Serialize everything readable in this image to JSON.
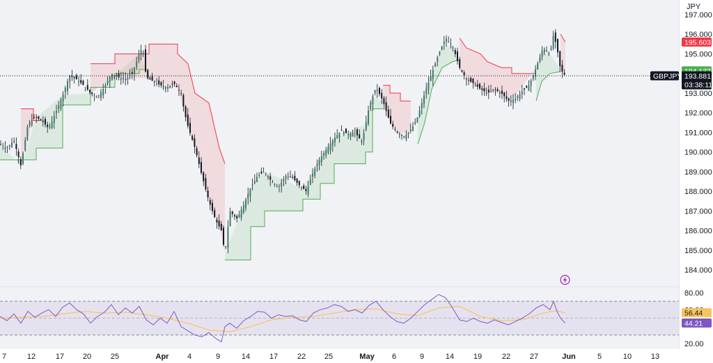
{
  "chart_data": {
    "type": "candlestick",
    "symbol": "GBPJPY",
    "currency_label": "JPY",
    "last_price": "193.881",
    "countdown": "03:38:11",
    "stop_upper": "195.603",
    "stop_lower": "194.137",
    "y_ticks": [
      "184.000",
      "185.000",
      "186.000",
      "187.000",
      "188.000",
      "189.000",
      "190.000",
      "191.000",
      "192.000",
      "193.000",
      "194.000",
      "195.000",
      "196.000",
      "197.000"
    ],
    "ylim": [
      183.6,
      197.3
    ],
    "x_ticks": [
      {
        "label": "7",
        "bold": false
      },
      {
        "label": "12",
        "bold": false
      },
      {
        "label": "17",
        "bold": false
      },
      {
        "label": "20",
        "bold": false
      },
      {
        "label": "25",
        "bold": false
      },
      {
        "label": "Apr",
        "bold": true
      },
      {
        "label": "4",
        "bold": false
      },
      {
        "label": "9",
        "bold": false
      },
      {
        "label": "14",
        "bold": false
      },
      {
        "label": "17",
        "bold": false
      },
      {
        "label": "22",
        "bold": false
      },
      {
        "label": "25",
        "bold": false
      },
      {
        "label": "May",
        "bold": true
      },
      {
        "label": "6",
        "bold": false
      },
      {
        "label": "9",
        "bold": false
      },
      {
        "label": "14",
        "bold": false
      },
      {
        "label": "19",
        "bold": false
      },
      {
        "label": "22",
        "bold": false
      },
      {
        "label": "27",
        "bold": false
      },
      {
        "label": "Jun",
        "bold": true
      },
      {
        "label": "5",
        "bold": false
      },
      {
        "label": "10",
        "bold": false
      },
      {
        "label": "13",
        "bold": false
      }
    ],
    "price_path": [
      [
        0,
        190.4
      ],
      [
        10,
        190.2
      ],
      [
        20,
        190.6
      ],
      [
        30,
        189.3
      ],
      [
        40,
        191.4
      ],
      [
        50,
        191.8
      ],
      [
        60,
        191.6
      ],
      [
        70,
        191.2
      ],
      [
        80,
        192.0
      ],
      [
        90,
        192.9
      ],
      [
        100,
        193.9
      ],
      [
        110,
        193.7
      ],
      [
        120,
        193.4
      ],
      [
        130,
        193.0
      ],
      [
        140,
        192.8
      ],
      [
        150,
        193.3
      ],
      [
        160,
        194.0
      ],
      [
        170,
        193.8
      ],
      [
        180,
        193.7
      ],
      [
        190,
        194.0
      ],
      [
        200,
        195.0
      ],
      [
        205,
        195.3
      ],
      [
        210,
        193.8
      ],
      [
        220,
        193.6
      ],
      [
        230,
        193.4
      ],
      [
        240,
        193.3
      ],
      [
        250,
        193.5
      ],
      [
        260,
        193.0
      ],
      [
        265,
        192.0
      ],
      [
        270,
        191.3
      ],
      [
        280,
        190.2
      ],
      [
        290,
        188.8
      ],
      [
        300,
        187.5
      ],
      [
        310,
        186.5
      ],
      [
        318,
        186.0
      ],
      [
        323,
        184.8
      ],
      [
        330,
        187.0
      ],
      [
        340,
        186.6
      ],
      [
        350,
        187.3
      ],
      [
        360,
        188.2
      ],
      [
        370,
        188.8
      ],
      [
        380,
        189.0
      ],
      [
        390,
        188.5
      ],
      [
        400,
        188.2
      ],
      [
        410,
        188.8
      ],
      [
        420,
        188.7
      ],
      [
        430,
        188.3
      ],
      [
        440,
        188.0
      ],
      [
        450,
        189.0
      ],
      [
        460,
        189.7
      ],
      [
        470,
        190.2
      ],
      [
        480,
        190.7
      ],
      [
        490,
        191.1
      ],
      [
        500,
        190.9
      ],
      [
        510,
        191.0
      ],
      [
        520,
        190.5
      ],
      [
        530,
        192.3
      ],
      [
        540,
        193.3
      ],
      [
        550,
        192.6
      ],
      [
        560,
        191.5
      ],
      [
        570,
        191.0
      ],
      [
        580,
        190.8
      ],
      [
        590,
        191.1
      ],
      [
        600,
        191.8
      ],
      [
        610,
        193.0
      ],
      [
        620,
        194.0
      ],
      [
        630,
        195.0
      ],
      [
        640,
        195.8
      ],
      [
        650,
        195.4
      ],
      [
        660,
        194.3
      ],
      [
        670,
        193.7
      ],
      [
        680,
        193.5
      ],
      [
        690,
        193.2
      ],
      [
        700,
        193.0
      ],
      [
        710,
        193.2
      ],
      [
        720,
        193.0
      ],
      [
        730,
        192.6
      ],
      [
        740,
        192.7
      ],
      [
        750,
        193.1
      ],
      [
        760,
        193.4
      ],
      [
        770,
        194.3
      ],
      [
        780,
        195.3
      ],
      [
        790,
        195.0
      ],
      [
        795,
        196.0
      ],
      [
        800,
        195.3
      ],
      [
        805,
        194.2
      ],
      [
        812,
        193.88
      ]
    ],
    "stop_line_segments": [
      {
        "side": "below",
        "points": [
          [
            0,
            189.6
          ],
          [
            30,
            189.6
          ],
          [
            52,
            189.6
          ],
          [
            52,
            190.2
          ],
          [
            90,
            190.2
          ],
          [
            90,
            192.4
          ],
          [
            130,
            192.4
          ],
          [
            130,
            193.3
          ],
          [
            165,
            193.3
          ],
          [
            165,
            194.0
          ],
          [
            200,
            194.0
          ],
          [
            200,
            194.2
          ],
          [
            214,
            194.2
          ]
        ]
      },
      {
        "side": "above",
        "points": [
          [
            30,
            192.2
          ],
          [
            48,
            192.2
          ],
          [
            48,
            191.6
          ],
          [
            60,
            191.6
          ]
        ]
      },
      {
        "side": "above",
        "points": [
          [
            130,
            194.5
          ],
          [
            165,
            194.5
          ],
          [
            165,
            195.0
          ],
          [
            214,
            195.0
          ],
          [
            214,
            195.5
          ],
          [
            255,
            195.5
          ],
          [
            255,
            195.0
          ],
          [
            270,
            194.5
          ],
          [
            280,
            193.0
          ],
          [
            300,
            192.5
          ],
          [
            315,
            190.2
          ],
          [
            323,
            189.4
          ]
        ]
      },
      {
        "side": "below",
        "points": [
          [
            323,
            184.5
          ],
          [
            360,
            184.5
          ],
          [
            360,
            186.2
          ],
          [
            380,
            186.2
          ],
          [
            380,
            187.0
          ],
          [
            435,
            187.0
          ],
          [
            435,
            187.6
          ],
          [
            460,
            187.6
          ],
          [
            460,
            188.4
          ],
          [
            480,
            188.4
          ],
          [
            480,
            189.4
          ],
          [
            525,
            189.4
          ],
          [
            525,
            190.0
          ],
          [
            535,
            190.0
          ],
          [
            535,
            192.2
          ],
          [
            550,
            192.2
          ]
        ]
      },
      {
        "side": "above",
        "points": [
          [
            550,
            193.4
          ],
          [
            560,
            193.4
          ],
          [
            560,
            193.0
          ],
          [
            575,
            193.0
          ],
          [
            575,
            192.6
          ],
          [
            590,
            192.6
          ]
        ]
      },
      {
        "side": "below",
        "points": [
          [
            600,
            190.4
          ],
          [
            610,
            191.5
          ],
          [
            620,
            193.2
          ],
          [
            635,
            194.3
          ],
          [
            650,
            194.6
          ],
          [
            660,
            194.7
          ]
        ]
      },
      {
        "side": "above",
        "points": [
          [
            660,
            195.8
          ],
          [
            670,
            195.3
          ],
          [
            690,
            195.0
          ],
          [
            700,
            194.6
          ],
          [
            720,
            194.3
          ],
          [
            735,
            194.3
          ],
          [
            735,
            194.0
          ],
          [
            770,
            194.0
          ]
        ]
      },
      {
        "side": "below",
        "points": [
          [
            770,
            192.6
          ],
          [
            778,
            193.6
          ],
          [
            790,
            194.0
          ],
          [
            805,
            194.1
          ]
        ]
      },
      {
        "side": "above",
        "points": [
          [
            805,
            196.0
          ],
          [
            812,
            195.6
          ]
        ]
      }
    ],
    "rsi": {
      "ylim": [
        10,
        90
      ],
      "y_ticks": [
        "20.00",
        "80.00"
      ],
      "hidden_tick": "60.00",
      "rsi_value": "44.21",
      "ma_value": "56.44",
      "upper_band": 70,
      "middle_band": 50,
      "lower_band": 30,
      "rsi_path": [
        [
          0,
          52
        ],
        [
          10,
          47
        ],
        [
          20,
          55
        ],
        [
          30,
          44
        ],
        [
          40,
          58
        ],
        [
          50,
          51
        ],
        [
          60,
          56
        ],
        [
          70,
          60
        ],
        [
          80,
          52
        ],
        [
          90,
          63
        ],
        [
          100,
          68
        ],
        [
          110,
          60
        ],
        [
          120,
          55
        ],
        [
          130,
          44
        ],
        [
          140,
          52
        ],
        [
          150,
          57
        ],
        [
          160,
          66
        ],
        [
          170,
          54
        ],
        [
          180,
          62
        ],
        [
          190,
          56
        ],
        [
          200,
          64
        ],
        [
          210,
          48
        ],
        [
          220,
          42
        ],
        [
          230,
          50
        ],
        [
          240,
          44
        ],
        [
          250,
          58
        ],
        [
          260,
          40
        ],
        [
          270,
          35
        ],
        [
          280,
          30
        ],
        [
          290,
          28
        ],
        [
          300,
          33
        ],
        [
          310,
          26
        ],
        [
          318,
          22
        ],
        [
          323,
          40
        ],
        [
          330,
          44
        ],
        [
          340,
          38
        ],
        [
          350,
          47
        ],
        [
          360,
          52
        ],
        [
          370,
          58
        ],
        [
          380,
          57
        ],
        [
          390,
          50
        ],
        [
          400,
          54
        ],
        [
          410,
          52
        ],
        [
          420,
          53
        ],
        [
          430,
          48
        ],
        [
          440,
          46
        ],
        [
          450,
          56
        ],
        [
          460,
          60
        ],
        [
          470,
          62
        ],
        [
          480,
          66
        ],
        [
          490,
          64
        ],
        [
          500,
          58
        ],
        [
          510,
          60
        ],
        [
          520,
          56
        ],
        [
          530,
          65
        ],
        [
          540,
          70
        ],
        [
          550,
          60
        ],
        [
          560,
          52
        ],
        [
          570,
          46
        ],
        [
          580,
          44
        ],
        [
          590,
          50
        ],
        [
          600,
          58
        ],
        [
          610,
          66
        ],
        [
          620,
          72
        ],
        [
          630,
          78
        ],
        [
          640,
          74
        ],
        [
          650,
          62
        ],
        [
          660,
          48
        ],
        [
          670,
          46
        ],
        [
          680,
          50
        ],
        [
          690,
          46
        ],
        [
          700,
          44
        ],
        [
          710,
          48
        ],
        [
          720,
          45
        ],
        [
          730,
          42
        ],
        [
          740,
          46
        ],
        [
          750,
          50
        ],
        [
          760,
          55
        ],
        [
          770,
          62
        ],
        [
          780,
          66
        ],
        [
          790,
          60
        ],
        [
          795,
          70
        ],
        [
          800,
          58
        ],
        [
          805,
          50
        ],
        [
          812,
          44
        ]
      ],
      "ma_path": [
        [
          0,
          50
        ],
        [
          30,
          51
        ],
        [
          60,
          52
        ],
        [
          90,
          55
        ],
        [
          120,
          58
        ],
        [
          150,
          56
        ],
        [
          180,
          57
        ],
        [
          210,
          54
        ],
        [
          240,
          50
        ],
        [
          270,
          44
        ],
        [
          300,
          36
        ],
        [
          330,
          34
        ],
        [
          360,
          40
        ],
        [
          390,
          48
        ],
        [
          420,
          51
        ],
        [
          450,
          52
        ],
        [
          480,
          56
        ],
        [
          510,
          60
        ],
        [
          540,
          61
        ],
        [
          570,
          55
        ],
        [
          600,
          53
        ],
        [
          630,
          62
        ],
        [
          660,
          64
        ],
        [
          690,
          52
        ],
        [
          720,
          47
        ],
        [
          750,
          48
        ],
        [
          780,
          56
        ],
        [
          800,
          59
        ],
        [
          812,
          56
        ]
      ]
    }
  }
}
